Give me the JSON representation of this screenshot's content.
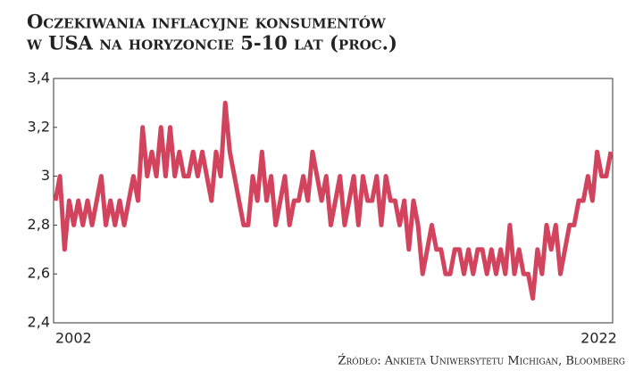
{
  "chart_data": {
    "type": "line",
    "title": [
      "Oczekiwania inflacyjne konsumentów",
      "w USA na horyzoncie 5-10 lat (proc.)"
    ],
    "source": "Źródło: Ankieta Uniwersytetu Michigan, Bloomberg",
    "color": "#d2445e",
    "categories": [
      "2002",
      null,
      null,
      null,
      null,
      null,
      null,
      null,
      null,
      null,
      null,
      null,
      null,
      null,
      null,
      null,
      null,
      null,
      null,
      null,
      null,
      null,
      null,
      null,
      null,
      null,
      null,
      null,
      null,
      null,
      null,
      null,
      null,
      null,
      null,
      null,
      null,
      null,
      null,
      null,
      null,
      null,
      null,
      null,
      null,
      null,
      null,
      null,
      null,
      null,
      null,
      null,
      null,
      null,
      null,
      null,
      null,
      null,
      null,
      null,
      null,
      null,
      null,
      null,
      null,
      null,
      null,
      null,
      null,
      null,
      null,
      null,
      null,
      null,
      null,
      null,
      null,
      null,
      null,
      null,
      null,
      null,
      null,
      null,
      null,
      null,
      null,
      null,
      null,
      null,
      null,
      null,
      null,
      null,
      null,
      null,
      null,
      null,
      null,
      null,
      null,
      null,
      null,
      null,
      null,
      null,
      null,
      null,
      null,
      null,
      null,
      null,
      null,
      null,
      null,
      null,
      null,
      null,
      null,
      null,
      "2022",
      null
    ],
    "values": [
      2.9,
      3.0,
      2.7,
      2.9,
      2.8,
      2.9,
      2.8,
      2.9,
      2.8,
      2.9,
      3.0,
      2.8,
      2.9,
      2.8,
      2.9,
      2.8,
      2.9,
      3.0,
      2.9,
      3.2,
      3.0,
      3.1,
      3.0,
      3.2,
      3.0,
      3.2,
      3.0,
      3.1,
      3.0,
      3.0,
      3.1,
      3.0,
      3.1,
      3.0,
      2.9,
      3.1,
      3.0,
      3.3,
      3.1,
      3.0,
      2.9,
      2.8,
      2.8,
      3.0,
      2.9,
      3.1,
      2.9,
      3.0,
      2.8,
      2.9,
      3.0,
      2.8,
      2.9,
      2.9,
      3.0,
      2.9,
      3.1,
      3.0,
      2.9,
      3.0,
      2.8,
      2.9,
      3.0,
      2.8,
      2.9,
      3.0,
      2.8,
      3.0,
      2.9,
      2.9,
      3.0,
      2.8,
      3.0,
      2.9,
      2.9,
      2.8,
      2.9,
      2.7,
      2.9,
      2.8,
      2.6,
      2.7,
      2.8,
      2.7,
      2.7,
      2.6,
      2.6,
      2.7,
      2.7,
      2.6,
      2.7,
      2.6,
      2.7,
      2.7,
      2.6,
      2.7,
      2.6,
      2.7,
      2.6,
      2.8,
      2.6,
      2.7,
      2.6,
      2.6,
      2.5,
      2.7,
      2.6,
      2.8,
      2.7,
      2.8,
      2.6,
      2.7,
      2.8,
      2.8,
      2.9,
      2.9,
      3.0,
      2.9,
      3.1,
      3.0,
      3.0,
      3.1
    ],
    "ylim": [
      2.4,
      3.4
    ],
    "yticks": [
      {
        "value": 2.4,
        "label": "2,4"
      },
      {
        "value": 2.6,
        "label": "2,6"
      },
      {
        "value": 2.8,
        "label": "2,8"
      },
      3,
      {
        "value": 3.2,
        "label": "3,2"
      },
      {
        "value": 3.4,
        "label": "3,4"
      }
    ],
    "grid": false
  }
}
